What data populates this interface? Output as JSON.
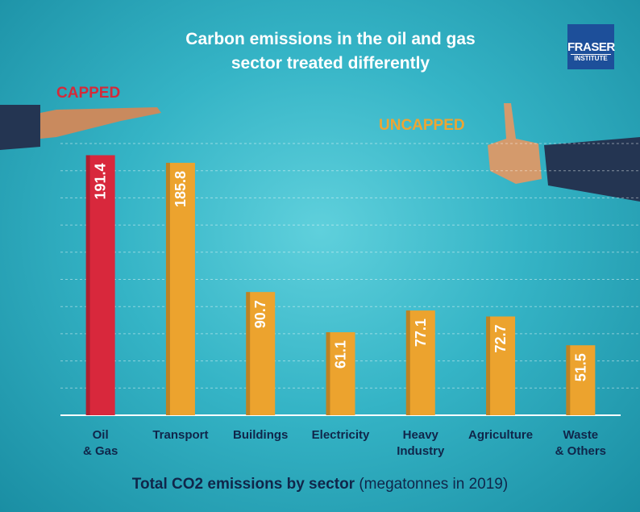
{
  "chart_data": {
    "type": "bar",
    "title": "Carbon emissions in the oil and gas\nsector treated differently",
    "logo": {
      "line1": "FRASER",
      "line2": "INSTITUTE"
    },
    "annotations": [
      {
        "text": "CAPPED",
        "color": "#d42a3a"
      },
      {
        "text": "UNCAPPED",
        "color": "#eda533"
      }
    ],
    "categories": [
      "Oil\n& Gas",
      "Transport",
      "Buildings",
      "Electricity",
      "Heavy\nIndustry",
      "Agriculture",
      "Waste\n& Others"
    ],
    "values": [
      191.4,
      185.8,
      90.7,
      61.1,
      77.1,
      72.7,
      51.5
    ],
    "colors": [
      "#d8283c",
      "#eca32e",
      "#eca32e",
      "#eca32e",
      "#eca32e",
      "#eca32e",
      "#eca32e"
    ],
    "x_label": "Total CO2 emissions by sector",
    "x_label_note": "(megatonnes in 2019)",
    "ylim": [
      0,
      200
    ],
    "grid": true
  }
}
